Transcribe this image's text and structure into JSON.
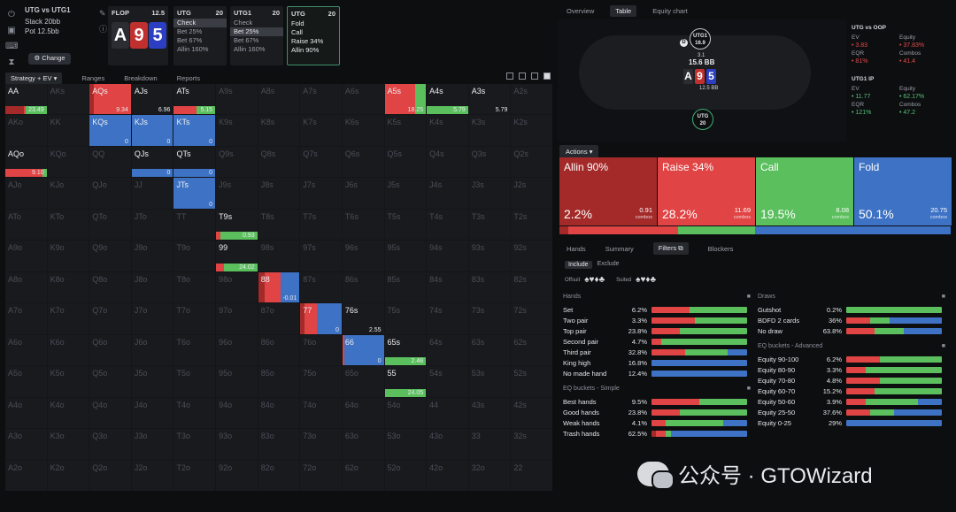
{
  "colors": {
    "allin": "#a42a2a",
    "raise": "#e04444",
    "call": "#5bbf5e",
    "fold": "#3d72c4",
    "check": "#5bbf5e"
  },
  "sidebar_icons": [
    "power-icon",
    "save-icon",
    "gamepad-icon",
    "hourglass-icon"
  ],
  "header": {
    "matchup": "UTG vs UTG1",
    "stack_label": "Stack 20bb",
    "pot_label": "Pot 12.5bb",
    "change_label": "Change",
    "flop": {
      "label": "FLOP",
      "pot": "12.5",
      "cards": [
        {
          "rank": "A",
          "color": "#2b2d33"
        },
        {
          "rank": "9",
          "color": "#c0302f"
        },
        {
          "rank": "5",
          "color": "#2c3fc2"
        }
      ]
    },
    "streets": [
      {
        "title": "UTG",
        "size": "20",
        "actions": [
          "Check",
          "Bet 25%",
          "Bet 67%",
          "Allin 160%"
        ],
        "selected": 0
      },
      {
        "title": "UTG1",
        "size": "20",
        "actions": [
          "Check",
          "Bet 25%",
          "Bet 67%",
          "Allin 160%"
        ],
        "selected": 1
      },
      {
        "title": "UTG",
        "size": "20",
        "actions": [
          "Fold",
          "Call",
          "Raise 34%",
          "Allin 90%"
        ],
        "selected": -1
      }
    ]
  },
  "left_tabs": {
    "strategy": "Strategy + EV",
    "ranges": "Ranges",
    "breakdown": "Breakdown",
    "reports": "Reports"
  },
  "grid": {
    "labels": [
      [
        "AA",
        "AKs",
        "AQs",
        "AJs",
        "ATs",
        "A9s",
        "A8s",
        "A7s",
        "A6s",
        "A5s",
        "A4s",
        "A3s",
        "A2s"
      ],
      [
        "AKo",
        "KK",
        "KQs",
        "KJs",
        "KTs",
        "K9s",
        "K8s",
        "K7s",
        "K6s",
        "K5s",
        "K4s",
        "K3s",
        "K2s"
      ],
      [
        "AQo",
        "KQo",
        "QQ",
        "QJs",
        "QTs",
        "Q9s",
        "Q8s",
        "Q7s",
        "Q6s",
        "Q5s",
        "Q4s",
        "Q3s",
        "Q2s"
      ],
      [
        "AJo",
        "KJo",
        "QJo",
        "JJ",
        "JTs",
        "J9s",
        "J8s",
        "J7s",
        "J6s",
        "J5s",
        "J4s",
        "J3s",
        "J2s"
      ],
      [
        "ATo",
        "KTo",
        "QTo",
        "JTo",
        "TT",
        "T9s",
        "T8s",
        "T7s",
        "T6s",
        "T5s",
        "T4s",
        "T3s",
        "T2s"
      ],
      [
        "A9o",
        "K9o",
        "Q9o",
        "J9o",
        "T9o",
        "99",
        "98s",
        "97s",
        "96s",
        "95s",
        "94s",
        "93s",
        "92s"
      ],
      [
        "A8o",
        "K8o",
        "Q8o",
        "J8o",
        "T8o",
        "98o",
        "88",
        "87s",
        "86s",
        "85s",
        "84s",
        "83s",
        "82s"
      ],
      [
        "A7o",
        "K7o",
        "Q7o",
        "J7o",
        "T7o",
        "97o",
        "87o",
        "77",
        "76s",
        "75s",
        "74s",
        "73s",
        "72s"
      ],
      [
        "A6o",
        "K6o",
        "Q6o",
        "J6o",
        "T6o",
        "96o",
        "86o",
        "76o",
        "66",
        "65s",
        "64s",
        "63s",
        "62s"
      ],
      [
        "A5o",
        "K5o",
        "Q5o",
        "J5o",
        "T5o",
        "95o",
        "85o",
        "75o",
        "65o",
        "55",
        "54s",
        "53s",
        "52s"
      ],
      [
        "A4o",
        "K4o",
        "Q4o",
        "J4o",
        "T4o",
        "94o",
        "84o",
        "74o",
        "64o",
        "54o",
        "44",
        "43s",
        "42s"
      ],
      [
        "A3o",
        "K3o",
        "Q3o",
        "J3o",
        "T3o",
        "93o",
        "83o",
        "73o",
        "63o",
        "53o",
        "43o",
        "33",
        "32s"
      ],
      [
        "A2o",
        "K2o",
        "Q2o",
        "J2o",
        "T2o",
        "92o",
        "82o",
        "72o",
        "62o",
        "52o",
        "42o",
        "32o",
        "22"
      ]
    ],
    "active": [
      {
        "r": 0,
        "c": 0,
        "mode": "bar",
        "w": 1,
        "mix": [
          0.45,
          0.05,
          0.5,
          0
        ],
        "ev": "23.49"
      },
      {
        "r": 0,
        "c": 2,
        "mode": "fill",
        "w": 1,
        "mix": [
          0.1,
          0.9,
          0,
          0
        ],
        "ev": "9.34"
      },
      {
        "r": 0,
        "c": 3,
        "mode": "bar",
        "w": 1,
        "mix": [
          0,
          0,
          0,
          0
        ],
        "ev": "6.96"
      },
      {
        "r": 0,
        "c": 4,
        "mode": "bar",
        "w": 1,
        "mix": [
          0,
          0.55,
          0.45,
          0
        ],
        "ev": "5.15"
      },
      {
        "r": 0,
        "c": 9,
        "mode": "fill",
        "w": 1,
        "mix": [
          0,
          0.75,
          0.25,
          0
        ],
        "ev": "18.25"
      },
      {
        "r": 0,
        "c": 10,
        "mode": "bar",
        "w": 1,
        "mix": [
          0,
          0,
          1,
          0
        ],
        "ev": "5.79"
      },
      {
        "r": 0,
        "c": 11,
        "mode": "bar",
        "w": 1,
        "mix": [
          0,
          0,
          0,
          0
        ],
        "ev": "5.79"
      },
      {
        "r": 1,
        "c": 2,
        "mode": "fill",
        "w": 1,
        "mix": [
          0,
          0,
          0,
          1
        ],
        "ev": "0"
      },
      {
        "r": 1,
        "c": 3,
        "mode": "fill",
        "w": 1,
        "mix": [
          0,
          0,
          0,
          1
        ],
        "ev": "0"
      },
      {
        "r": 1,
        "c": 4,
        "mode": "fill",
        "w": 1,
        "mix": [
          0,
          0,
          0,
          1
        ],
        "ev": "0"
      },
      {
        "r": 2,
        "c": 0,
        "mode": "bar",
        "w": 1,
        "mix": [
          0,
          0.9,
          0.1,
          0
        ],
        "ev": "9.10"
      },
      {
        "r": 2,
        "c": 3,
        "mode": "bar",
        "w": 1,
        "mix": [
          0,
          0,
          0,
          1
        ],
        "ev": "0"
      },
      {
        "r": 2,
        "c": 4,
        "mode": "bar",
        "w": 1,
        "mix": [
          0,
          0,
          0,
          1
        ],
        "ev": "0"
      },
      {
        "r": 3,
        "c": 4,
        "mode": "fill",
        "w": 1,
        "mix": [
          0,
          0,
          0,
          1
        ],
        "ev": "0"
      },
      {
        "r": 4,
        "c": 5,
        "mode": "bar",
        "w": 1,
        "mix": [
          0,
          0.1,
          0.9,
          0
        ],
        "ev": "0.93"
      },
      {
        "r": 5,
        "c": 5,
        "mode": "bar",
        "w": 1,
        "mix": [
          0,
          0.2,
          0.8,
          0
        ],
        "ev": "24.02"
      },
      {
        "r": 6,
        "c": 6,
        "mode": "fill",
        "w": 1,
        "mix": [
          0.15,
          0.4,
          0,
          0.45
        ],
        "ev": "-0.01"
      },
      {
        "r": 7,
        "c": 7,
        "mode": "fill",
        "w": 1,
        "mix": [
          0.1,
          0.3,
          0,
          0.6
        ],
        "ev": "0"
      },
      {
        "r": 7,
        "c": 8,
        "mode": "bar",
        "w": 1,
        "mix": [
          0,
          0,
          0,
          0
        ],
        "ev": "2.55"
      },
      {
        "r": 8,
        "c": 8,
        "mode": "fill",
        "w": 1,
        "mix": [
          0,
          0.05,
          0,
          0.95
        ],
        "ev": "0"
      },
      {
        "r": 8,
        "c": 9,
        "mode": "bar",
        "w": 1,
        "mix": [
          0,
          0,
          1,
          0
        ],
        "ev": "2.48"
      },
      {
        "r": 9,
        "c": 9,
        "mode": "bar",
        "w": 1,
        "mix": [
          0,
          0,
          1,
          0
        ],
        "ev": "24.05"
      }
    ]
  },
  "right_tabs": {
    "overview": "Overview",
    "table": "Table",
    "equity": "Equity chart"
  },
  "table": {
    "seat_top": {
      "name": "UTG1",
      "stack": "16.9"
    },
    "seat_bottom": {
      "name": "UTG",
      "stack": "20"
    },
    "dealer": "D",
    "bet_top": "3.1",
    "pot": "15.6 BB",
    "pot_sub": "12.5 BB",
    "board": [
      {
        "rank": "A",
        "color": "#2b2d33"
      },
      {
        "rank": "9",
        "color": "#c0302f"
      },
      {
        "rank": "5",
        "color": "#2c3fc2"
      }
    ]
  },
  "ev_panel": {
    "p1": {
      "title": "UTG vs OOP",
      "ev_label": "EV",
      "ev": "3.83",
      "eq_label": "Equity",
      "eq": "37.83%",
      "eqr_label": "EQR",
      "eqr": "81%",
      "combos_label": "Combos",
      "combos": "41.4"
    },
    "p2": {
      "title": "UTG1 IP",
      "ev_label": "EV",
      "ev": "11.77",
      "eq_label": "Equity",
      "eq": "62.17%",
      "eqr_label": "EQR",
      "eqr": "121%",
      "combos_label": "Combos",
      "combos": "47.2"
    }
  },
  "actions": {
    "header": "Actions",
    "items": [
      {
        "name": "Allin 90%",
        "pct": "2.2%",
        "combos": "0.91",
        "sub": "combos",
        "color": "#a42a2a"
      },
      {
        "name": "Raise 34%",
        "pct": "28.2%",
        "combos": "11.69",
        "sub": "combos",
        "color": "#e04444"
      },
      {
        "name": "Call",
        "pct": "19.5%",
        "combos": "8.08",
        "sub": "combos",
        "color": "#5bbf5e"
      },
      {
        "name": "Fold",
        "pct": "50.1%",
        "combos": "20.75",
        "sub": "combos",
        "color": "#3d72c4"
      }
    ],
    "mix": [
      0.022,
      0.282,
      0.195,
      0.501
    ]
  },
  "filter_tabs": {
    "hands": "Hands",
    "summary": "Summary",
    "filters": "Filters",
    "blockers": "Blockers"
  },
  "include": {
    "include": "Include",
    "exclude": "Exclude",
    "offsuit": "Offsuit",
    "suited": "Suited"
  },
  "hands_section": {
    "title": "Hands",
    "rows": [
      {
        "label": "Set",
        "pct": "6.2%",
        "mix": [
          0,
          0.4,
          0.6,
          0
        ]
      },
      {
        "label": "Two pair",
        "pct": "3.3%",
        "mix": [
          0,
          0.45,
          0.55,
          0
        ]
      },
      {
        "label": "Top pair",
        "pct": "23.8%",
        "mix": [
          0,
          0.3,
          0.7,
          0
        ]
      },
      {
        "label": "Second pair",
        "pct": "4.7%",
        "mix": [
          0,
          0.1,
          0.9,
          0
        ]
      },
      {
        "label": "Third pair",
        "pct": "32.8%",
        "mix": [
          0,
          0.35,
          0.45,
          0.2
        ]
      },
      {
        "label": "King high",
        "pct": "16.8%",
        "mix": [
          0,
          0,
          0,
          1
        ]
      },
      {
        "label": "No made hand",
        "pct": "12.4%",
        "mix": [
          0,
          0,
          0,
          1
        ]
      }
    ]
  },
  "eq_simple": {
    "title": "EQ buckets - Simple",
    "rows": [
      {
        "label": "Best hands",
        "pct": "9.5%",
        "mix": [
          0,
          0.5,
          0.5,
          0
        ]
      },
      {
        "label": "Good hands",
        "pct": "23.8%",
        "mix": [
          0,
          0.3,
          0.7,
          0
        ]
      },
      {
        "label": "Weak hands",
        "pct": "4.1%",
        "mix": [
          0,
          0.15,
          0.6,
          0.25
        ]
      },
      {
        "label": "Trash hands",
        "pct": "62.5%",
        "mix": [
          0.05,
          0.1,
          0.05,
          0.8
        ]
      }
    ]
  },
  "draws": {
    "title": "Draws",
    "rows": [
      {
        "label": "Gutshot",
        "pct": "0.2%",
        "mix": [
          0,
          0,
          1,
          0
        ]
      },
      {
        "label": "BDFD 2 cards",
        "pct": "36%",
        "mix": [
          0,
          0.25,
          0.2,
          0.55
        ]
      },
      {
        "label": "No draw",
        "pct": "63.8%",
        "mix": [
          0,
          0.3,
          0.3,
          0.4
        ]
      }
    ]
  },
  "eq_advanced": {
    "title": "EQ buckets - Advanced",
    "rows": [
      {
        "label": "Equity 90-100",
        "pct": "6.2%",
        "mix": [
          0,
          0.35,
          0.65,
          0
        ]
      },
      {
        "label": "Equity 80-90",
        "pct": "3.3%",
        "mix": [
          0,
          0.2,
          0.8,
          0
        ]
      },
      {
        "label": "Equity 70-80",
        "pct": "4.8%",
        "mix": [
          0,
          0.35,
          0.65,
          0
        ]
      },
      {
        "label": "Equity 60-70",
        "pct": "15.2%",
        "mix": [
          0,
          0.3,
          0.7,
          0
        ]
      },
      {
        "label": "Equity 50-60",
        "pct": "3.9%",
        "mix": [
          0,
          0.2,
          0.55,
          0.25
        ]
      },
      {
        "label": "Equity 25-50",
        "pct": "37.6%",
        "mix": [
          0,
          0.25,
          0.25,
          0.5
        ]
      },
      {
        "label": "Equity 0-25",
        "pct": "29%",
        "mix": [
          0,
          0,
          0,
          1
        ]
      }
    ]
  },
  "watermark": {
    "text": "公众号 · GTOWizard"
  }
}
